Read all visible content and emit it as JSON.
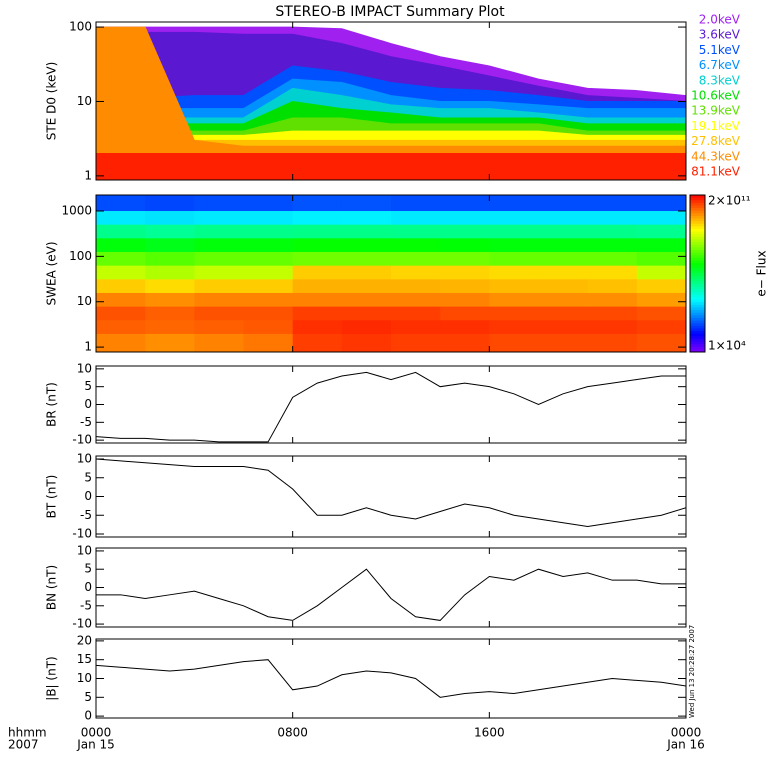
{
  "title": "STEREO-B IMPACT Summary Plot",
  "time_axis": {
    "label": "hhmm",
    "year": "2007",
    "dates": [
      {
        "value": 0,
        "label": "Jan 15"
      },
      {
        "value": 24,
        "label": "Jan 16"
      }
    ]
  },
  "timestamp": "Wed Jun 13 20:28:27 2007",
  "chart_data": [
    {
      "type": "area",
      "ylabel": "STE D0 (keV)",
      "ylog": true,
      "ylim": [
        0.88,
        117
      ],
      "yticks": [
        1,
        10,
        100
      ],
      "x": [
        0,
        2,
        4,
        6,
        8,
        10,
        12,
        14,
        16,
        18,
        20,
        22,
        24
      ],
      "xlim": [
        0,
        24
      ],
      "xticks": [
        {
          "value": 0,
          "label": "0000"
        },
        {
          "value": 8,
          "label": "0800"
        },
        {
          "value": 16,
          "label": "1600"
        },
        {
          "value": 24,
          "label": "0000"
        }
      ],
      "series": [
        {
          "name": "2.0keV",
          "color": "#a020f0",
          "values": [
            100,
            100,
            100,
            100,
            100,
            95,
            60,
            40,
            30,
            20,
            15,
            14,
            12
          ]
        },
        {
          "name": "3.6keV",
          "color": "#5a18d0",
          "values": [
            90,
            85,
            85,
            80,
            80,
            60,
            40,
            30,
            22,
            16,
            12,
            11,
            10
          ]
        },
        {
          "name": "5.1keV",
          "color": "#0050ff",
          "values": [
            12,
            11,
            12,
            12,
            30,
            25,
            18,
            15,
            14,
            12,
            10,
            10,
            10
          ]
        },
        {
          "name": "6.7keV",
          "color": "#0090ff",
          "values": [
            8,
            8,
            8,
            8,
            20,
            18,
            12,
            10,
            10,
            9,
            8,
            8,
            8
          ]
        },
        {
          "name": "8.3keV",
          "color": "#00d0d0",
          "values": [
            6,
            6,
            6,
            6,
            15,
            12,
            9,
            8,
            8,
            7,
            6,
            6,
            6
          ]
        },
        {
          "name": "10.6keV",
          "color": "#00e000",
          "values": [
            5,
            5,
            5,
            5,
            10,
            8,
            7,
            6,
            6,
            6,
            5,
            5,
            5
          ]
        },
        {
          "name": "13.9keV",
          "color": "#60e000",
          "values": [
            4,
            4,
            4,
            4,
            6,
            6,
            5,
            5,
            5,
            5,
            4,
            4,
            4
          ]
        },
        {
          "name": "19.1keV",
          "color": "#ffff00",
          "values": [
            3.5,
            3.5,
            3.5,
            3.5,
            4,
            4,
            4,
            4,
            4,
            4,
            3.5,
            3.5,
            3.5
          ]
        },
        {
          "name": "27.8keV",
          "color": "#ffc000",
          "values": [
            3,
            3,
            3,
            3,
            3,
            3,
            3,
            3,
            3,
            3,
            3,
            3,
            3
          ]
        },
        {
          "name": "44.3keV",
          "color": "#ff8c00",
          "values": [
            100,
            100,
            3,
            2.5,
            2.5,
            2.5,
            2.5,
            2.5,
            2.5,
            2.5,
            2.5,
            2.5,
            2.5
          ]
        },
        {
          "name": "81.1keV",
          "color": "#ff2000",
          "values": [
            2,
            2,
            2,
            2,
            2,
            2,
            2,
            2,
            2,
            2,
            2,
            2,
            2
          ]
        }
      ]
    },
    {
      "type": "heatmap",
      "ylabel": "SWEA (eV)",
      "ylog": true,
      "ylim": [
        0.78,
        2250
      ],
      "yticks": [
        1,
        10,
        100,
        1000
      ],
      "xlim": [
        0,
        24
      ],
      "x_bins": [
        0,
        2,
        4,
        6,
        8,
        10,
        12,
        14,
        16,
        18,
        20,
        22,
        24
      ],
      "y_bins": [
        0.78,
        2,
        4,
        8,
        16,
        32,
        64,
        128,
        256,
        512,
        1024,
        2250
      ],
      "zlabel": "e− Flux",
      "zlog": true,
      "zlim": [
        10000.0,
        200000000000.0
      ],
      "zticks": [
        {
          "value": 200000000000.0,
          "label": "2×10¹¹"
        },
        {
          "value": 10000.0,
          "label": "1×10⁴"
        }
      ],
      "values": [
        [
          30000000000.0,
          25000000000.0,
          30000000000.0,
          35000000000.0,
          80000000000.0,
          90000000000.0,
          80000000000.0,
          80000000000.0,
          70000000000.0,
          70000000000.0,
          70000000000.0,
          60000000000.0
        ],
        [
          50000000000.0,
          45000000000.0,
          50000000000.0,
          55000000000.0,
          100000000000.0,
          110000000000.0,
          100000000000.0,
          100000000000.0,
          90000000000.0,
          90000000000.0,
          90000000000.0,
          80000000000.0
        ],
        [
          60000000000.0,
          50000000000.0,
          60000000000.0,
          60000000000.0,
          80000000000.0,
          80000000000.0,
          80000000000.0,
          70000000000.0,
          70000000000.0,
          70000000000.0,
          70000000000.0,
          60000000000.0
        ],
        [
          30000000000.0,
          25000000000.0,
          30000000000.0,
          30000000000.0,
          30000000000.0,
          30000000000.0,
          30000000000.0,
          30000000000.0,
          25000000000.0,
          25000000000.0,
          25000000000.0,
          20000000000.0
        ],
        [
          10000000000.0,
          8000000000.0,
          10000000000.0,
          10000000000.0,
          15000000000.0,
          15000000000.0,
          15000000000.0,
          14000000000.0,
          13000000000.0,
          13000000000.0,
          12000000000.0,
          10000000000.0
        ],
        [
          2000000000.0,
          1500000000.0,
          2000000000.0,
          2000000000.0,
          10000000000.0,
          10000000000.0,
          9000000000.0,
          9000000000.0,
          8000000000.0,
          8000000000.0,
          8000000000.0,
          2000000000.0
        ],
        [
          500000000.0,
          400000000.0,
          500000000.0,
          500000000.0,
          600000000.0,
          600000000.0,
          600000000.0,
          600000000.0,
          500000000.0,
          500000000.0,
          500000000.0,
          400000000.0
        ],
        [
          100000000.0,
          80000000.0,
          100000000.0,
          100000000.0,
          120000000.0,
          120000000.0,
          120000000.0,
          110000000.0,
          100000000.0,
          100000000.0,
          100000000.0,
          100000000.0
        ],
        [
          15000000.0,
          13000000.0,
          15000000.0,
          15000000.0,
          16000000.0,
          16000000.0,
          15000000.0,
          15000000.0,
          15000000.0,
          15000000.0,
          15000000.0,
          14000000.0
        ],
        [
          2000000.0,
          1800000.0,
          2000000.0,
          2000000.0,
          2200000.0,
          2200000.0,
          2000000.0,
          2000000.0,
          2000000.0,
          2000000.0,
          2000000.0,
          2000000.0
        ],
        [
          200000.0,
          180000.0,
          200000.0,
          200000.0,
          220000.0,
          220000.0,
          200000.0,
          200000.0,
          200000.0,
          200000.0,
          200000.0,
          200000.0
        ]
      ]
    },
    {
      "type": "line",
      "ylabel": "BR (nT)",
      "ylim": [
        -10.8,
        10.8
      ],
      "yticks": [
        -10,
        -5,
        0,
        5,
        10
      ],
      "xlim": [
        0,
        24
      ],
      "color": "#000000",
      "x": [
        0,
        1,
        2,
        3,
        4,
        5,
        6,
        7,
        8,
        9,
        10,
        11,
        12,
        13,
        14,
        15,
        16,
        17,
        18,
        19,
        20,
        21,
        22,
        23,
        24
      ],
      "values": [
        -9,
        -9.5,
        -9.5,
        -10,
        -10,
        -10.5,
        -10.5,
        -10.5,
        2,
        6,
        8,
        9,
        7,
        9,
        5,
        6,
        5,
        3,
        0,
        3,
        5,
        6,
        7,
        8,
        8
      ]
    },
    {
      "type": "line",
      "ylabel": "BT (nT)",
      "ylim": [
        -10.8,
        10.8
      ],
      "yticks": [
        -10,
        -5,
        0,
        5,
        10
      ],
      "xlim": [
        0,
        24
      ],
      "color": "#000000",
      "x": [
        0,
        1,
        2,
        3,
        4,
        5,
        6,
        7,
        8,
        9,
        10,
        11,
        12,
        13,
        14,
        15,
        16,
        17,
        18,
        19,
        20,
        21,
        22,
        23,
        24
      ],
      "values": [
        10,
        9.5,
        9,
        8.5,
        8,
        8,
        8,
        7,
        2,
        -5,
        -5,
        -3,
        -5,
        -6,
        -4,
        -2,
        -3,
        -5,
        -6,
        -7,
        -8,
        -7,
        -6,
        -5,
        -3
      ]
    },
    {
      "type": "line",
      "ylabel": "BN (nT)",
      "ylim": [
        -10.8,
        10.8
      ],
      "yticks": [
        -10,
        -5,
        0,
        5,
        10
      ],
      "xlim": [
        0,
        24
      ],
      "color": "#000000",
      "x": [
        0,
        1,
        2,
        3,
        4,
        5,
        6,
        7,
        8,
        9,
        10,
        11,
        12,
        13,
        14,
        15,
        16,
        17,
        18,
        19,
        20,
        21,
        22,
        23,
        24
      ],
      "values": [
        -2,
        -2,
        -3,
        -2,
        -1,
        -3,
        -5,
        -8,
        -9,
        -5,
        0,
        5,
        -3,
        -8,
        -9,
        -2,
        3,
        2,
        5,
        3,
        4,
        2,
        2,
        1,
        1
      ]
    },
    {
      "type": "line",
      "ylabel": "|B| (nT)",
      "ylim": [
        -0.5,
        20.5
      ],
      "yticks": [
        0,
        5,
        10,
        15,
        20
      ],
      "xlim": [
        0,
        24
      ],
      "color": "#000000",
      "x": [
        0,
        1,
        2,
        3,
        4,
        5,
        6,
        7,
        8,
        9,
        10,
        11,
        12,
        13,
        14,
        15,
        16,
        17,
        18,
        19,
        20,
        21,
        22,
        23,
        24
      ],
      "values": [
        13.5,
        13,
        12.5,
        12,
        12.5,
        13.5,
        14.5,
        15,
        7,
        8,
        11,
        12,
        11.5,
        10,
        5,
        6,
        6.5,
        6,
        7,
        8,
        9,
        10,
        9.5,
        9,
        8
      ]
    }
  ]
}
